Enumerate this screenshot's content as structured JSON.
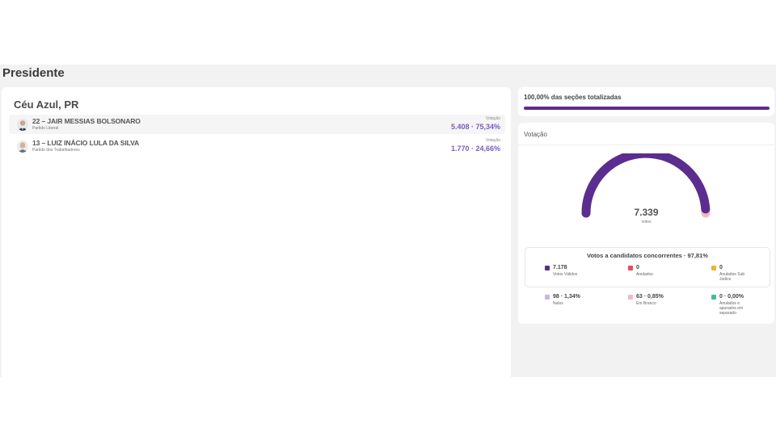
{
  "header": {
    "title": "Presidente"
  },
  "location": "Céu Azul, PR",
  "candidates": [
    {
      "name": "22 – JAIR MESSIAS BOLSONARO",
      "party": "Partido Liberal",
      "vote_label": "Votação",
      "votes": "5.408 · 75,34%"
    },
    {
      "name": "13 – LUIZ INÁCIO LULA DA SILVA",
      "party": "Partido dos Trabalhadores",
      "vote_label": "Votação",
      "votes": "1.770 · 24,66%"
    }
  ],
  "progress": {
    "label": "100,00% das seções totalizadas",
    "fraction": 1.0,
    "color": "#5b2d8e"
  },
  "votacao": {
    "title": "Votação",
    "total": "7.339",
    "total_label": "votos",
    "gauge_share_valid": 0.9781,
    "concorrentes_title": "Votos a candidatos concorrentes · 97,81%",
    "legend": [
      {
        "value": "7.178",
        "label": "Votos Válidos",
        "color": "#5b2d8e"
      },
      {
        "value": "0",
        "label": "Anulados",
        "color": "#e84a5f"
      },
      {
        "value": "0",
        "label": "Anulados Sub Judice",
        "color": "#f0b429"
      },
      {
        "value": "98 · 1,34%",
        "label": "Nulos",
        "color": "#c9b6e4"
      },
      {
        "value": "63 · 0,85%",
        "label": "Em Branco",
        "color": "#f3b8c4"
      },
      {
        "value": "0 · 0,00%",
        "label": "Anulados e apurados em separado",
        "color": "#3fbf8f"
      }
    ]
  }
}
